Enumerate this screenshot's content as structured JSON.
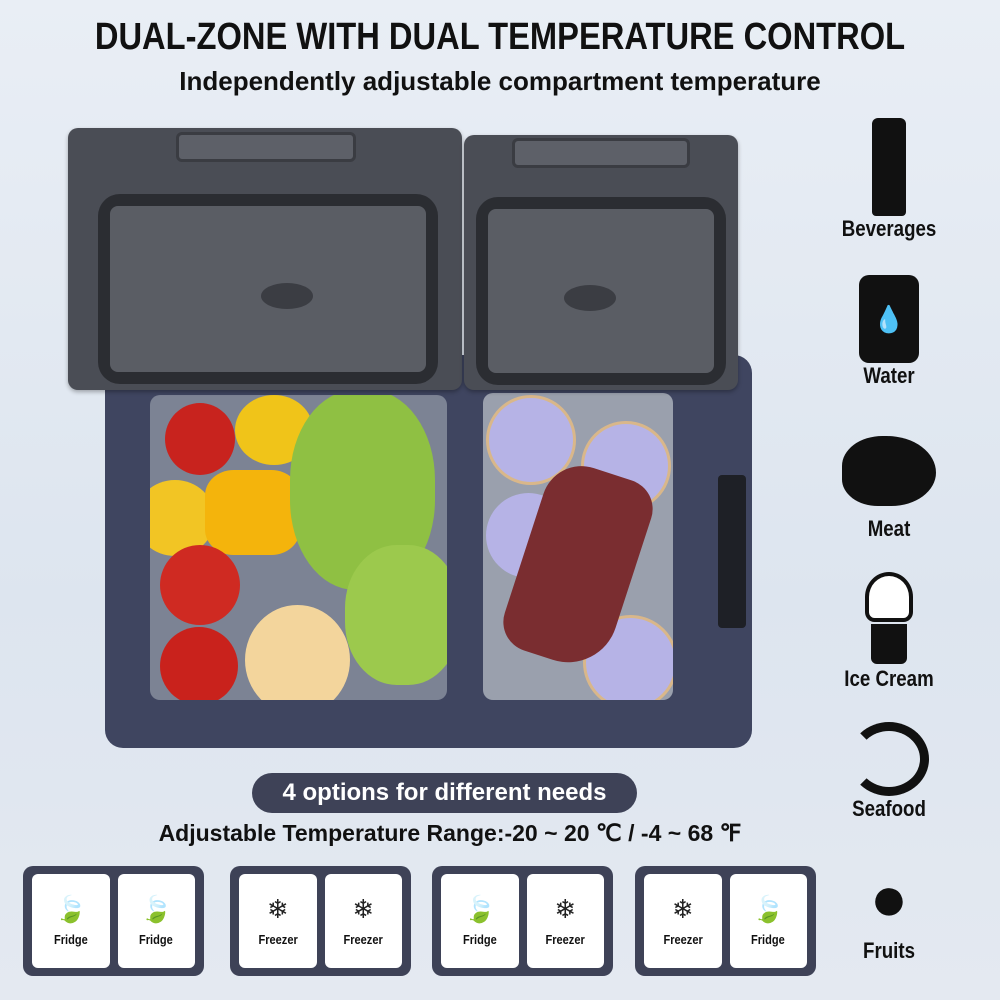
{
  "header": {
    "title": "DUAL-ZONE WITH DUAL TEMPERATURE CONTROL",
    "subtitle": "Independently adjustable compartment temperature"
  },
  "food_icons": [
    {
      "label": "Beverages",
      "icon": "bottle-icon"
    },
    {
      "label": "Water",
      "icon": "water-jug-icon"
    },
    {
      "label": "Meat",
      "icon": "steak-icon"
    },
    {
      "label": "Ice Cream",
      "icon": "ice-cream-icon"
    },
    {
      "label": "Seafood",
      "icon": "shrimp-icon"
    },
    {
      "label": "Fruits",
      "icon": "grapes-icon"
    }
  ],
  "options": {
    "pill": "4 options for different needs",
    "range": "Adjustable Temperature Range:-20 ~ 20 ℃ / -4 ~ 68 ℉"
  },
  "modes": [
    [
      {
        "label": "Fridge",
        "icon": "leaf-icon"
      },
      {
        "label": "Fridge",
        "icon": "leaf-icon"
      }
    ],
    [
      {
        "label": "Freezer",
        "icon": "snowflake-icon"
      },
      {
        "label": "Freezer",
        "icon": "snowflake-icon"
      }
    ],
    [
      {
        "label": "Fridge",
        "icon": "leaf-icon"
      },
      {
        "label": "Freezer",
        "icon": "snowflake-icon"
      }
    ],
    [
      {
        "label": "Freezer",
        "icon": "snowflake-icon"
      },
      {
        "label": "Fridge",
        "icon": "leaf-icon"
      }
    ]
  ],
  "colors": {
    "dark": "#3e4257",
    "background": "#e6ebf3"
  }
}
